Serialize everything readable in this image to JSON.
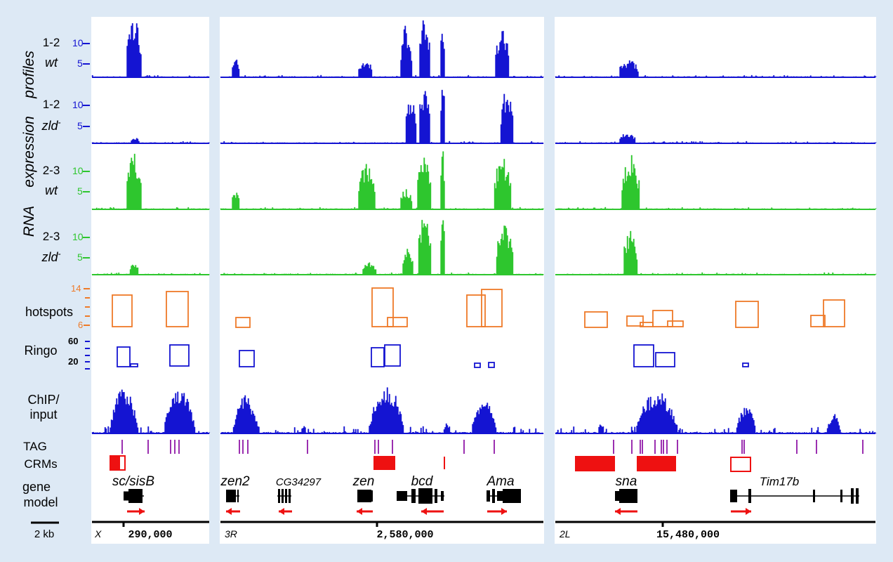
{
  "labels": {
    "rna": "RNA",
    "expression": "expression",
    "profiles": "profiles",
    "t12": "1-2",
    "t23": "2-3",
    "wt": "wt",
    "zld": "zld",
    "minus": "-",
    "tick10": "10",
    "tick5": "5",
    "hotspots": "hotspots",
    "hot14": "14",
    "hot6": "6",
    "ringo": "Ringo",
    "ringo60": "60",
    "ringo20": "20",
    "chip1": "ChIP/",
    "chip2": "input",
    "tag": "TAG",
    "crms": "CRMs",
    "gene1": "gene",
    "gene2": "model",
    "scale": "2 kb"
  },
  "panels": [
    {
      "chrom": "X",
      "coord": "290,000",
      "genes": [
        "sc/sisB"
      ]
    },
    {
      "chrom": "3R",
      "coord": "2,580,000",
      "genes": [
        "zen2",
        "CG34297",
        "zen",
        "bcd",
        "Ama"
      ]
    },
    {
      "chrom": "2L",
      "coord": "15,480,000",
      "genes": [
        "sna",
        "Tim17b"
      ]
    }
  ],
  "colors": {
    "blue": "#1414d2",
    "green": "#2ec62e",
    "orange": "#ee7a28",
    "purple": "#9b2fb0",
    "red": "#ee1111",
    "panel_bg": "#ffffff",
    "figure_bg": "#dde9f5"
  }
}
